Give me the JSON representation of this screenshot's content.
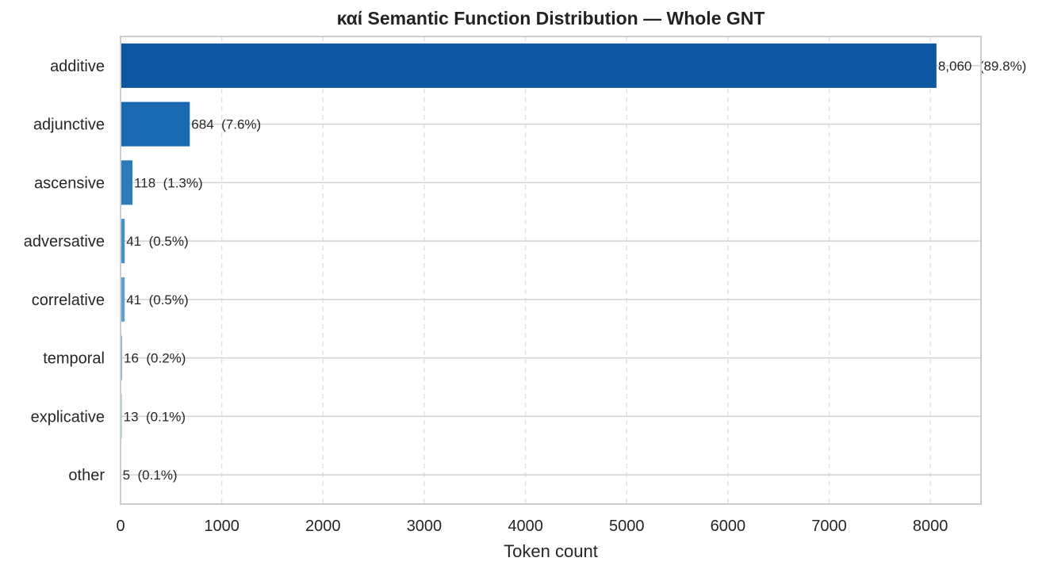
{
  "chart_data": {
    "type": "bar",
    "orientation": "horizontal",
    "title": "καί Semantic Function Distribution — Whole GNT",
    "xlabel": "Token count",
    "ylabel": "",
    "xlim": [
      0,
      8500
    ],
    "xticks": [
      0,
      1000,
      2000,
      3000,
      4000,
      5000,
      6000,
      7000,
      8000
    ],
    "grid": {
      "x": "dashed",
      "y": "solid"
    },
    "categories": [
      "additive",
      "adjunctive",
      "ascensive",
      "adversative",
      "correlative",
      "temporal",
      "explicative",
      "other"
    ],
    "values": [
      8060,
      684,
      118,
      41,
      41,
      16,
      13,
      5
    ],
    "data_labels": [
      "8,060  (89.8%)",
      "684  (7.6%)",
      "118  (1.3%)",
      "41  (0.5%)",
      "41  (0.5%)",
      "16  (0.2%)",
      "13  (0.1%)",
      "5  (0.1%)"
    ],
    "colors": [
      "#0d57a1",
      "#1b69b0",
      "#2b7bba",
      "#4292c6",
      "#5aa1cf",
      "#74b3d8",
      "#8fc1de",
      "#a6cee4"
    ]
  }
}
